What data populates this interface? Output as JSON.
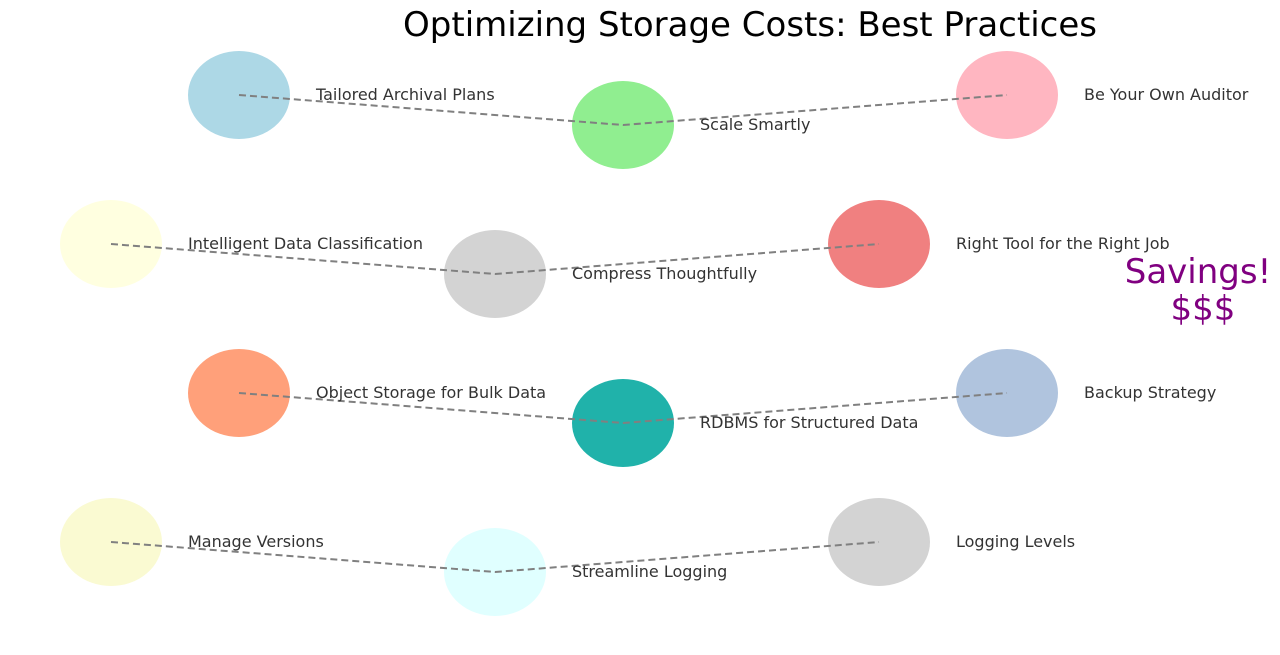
{
  "title": "Optimizing Storage Costs: Best Practices",
  "rows": [
    {
      "nodes": [
        {
          "label": "Tailored Archival Plans",
          "color": "#add8e6"
        },
        {
          "label": "Scale Smartly",
          "color": "#90ee90"
        },
        {
          "label": "Be Your Own Auditor",
          "color": "#ffb6c1"
        }
      ]
    },
    {
      "nodes": [
        {
          "label": "Intelligent Data Classification",
          "color": "#ffffe0"
        },
        {
          "label": "Compress Thoughtfully",
          "color": "#d3d3d3"
        },
        {
          "label": "Right Tool for the Right Job",
          "color": "#f08080"
        }
      ]
    },
    {
      "nodes": [
        {
          "label": "Object Storage for Bulk Data",
          "color": "#ffa07a"
        },
        {
          "label": "RDBMS for Structured Data",
          "color": "#20b2aa"
        },
        {
          "label": "Backup Strategy",
          "color": "#b0c4de"
        }
      ]
    },
    {
      "nodes": [
        {
          "label": "Manage Versions",
          "color": "#fafad2"
        },
        {
          "label": "Streamline Logging",
          "color": "#e0ffff"
        },
        {
          "label": "Logging Levels",
          "color": "#d3d3d3"
        }
      ]
    }
  ],
  "savings": {
    "line1": "Savings!",
    "line2": "$$$",
    "color": "#800080"
  }
}
